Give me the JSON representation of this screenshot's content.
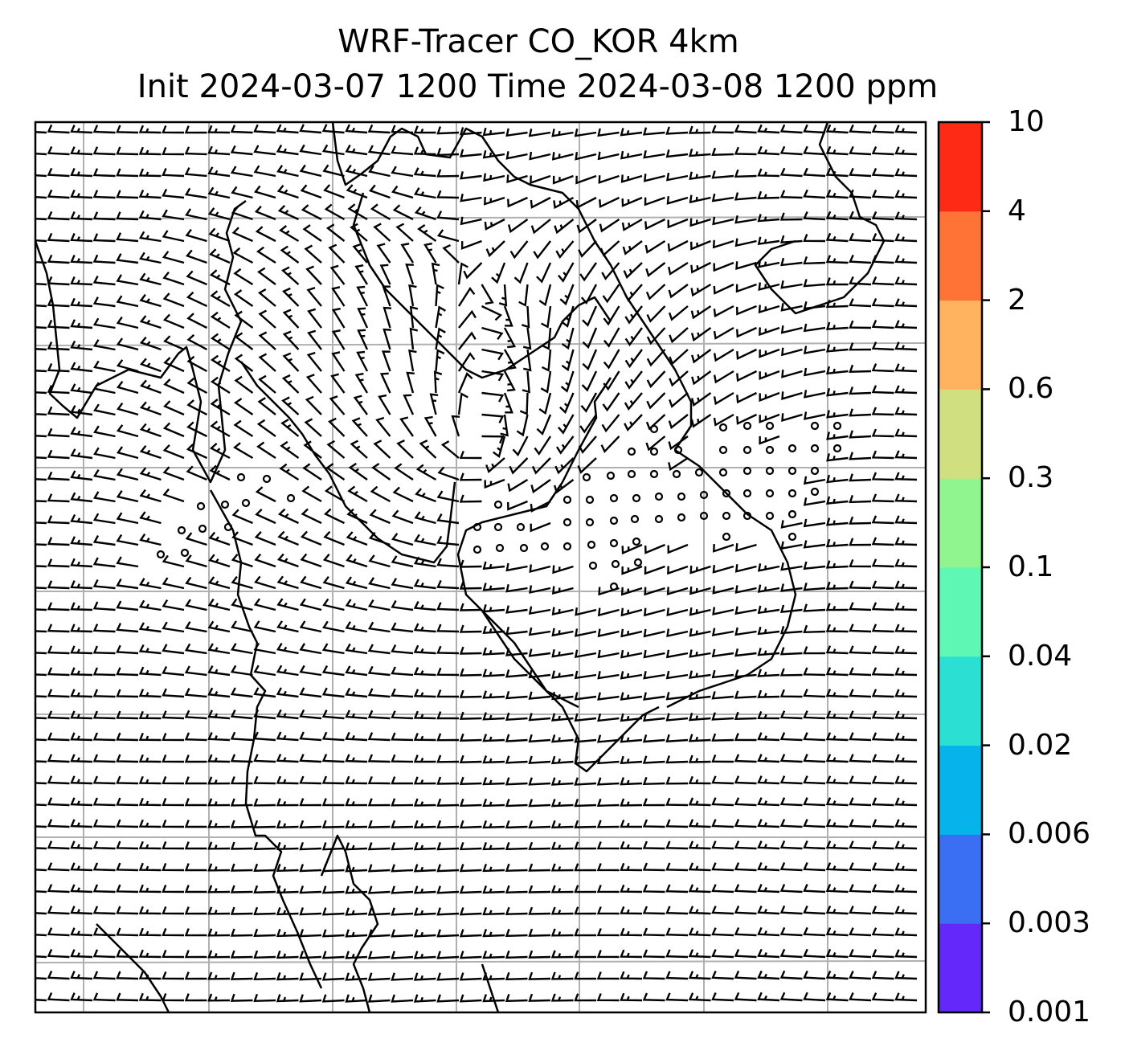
{
  "title": {
    "line1": "WRF-Tracer CO_KOR 4km",
    "line2": "Init 2024-03-07 1200 Time 2024-03-08 1200 ppm"
  },
  "colorbar": {
    "levels": [
      "0.001",
      "0.003",
      "0.006",
      "0.02",
      "0.04",
      "0.1",
      "0.3",
      "0.6",
      "2",
      "4",
      "10"
    ],
    "colors": [
      "#6528fa",
      "#3a6ff4",
      "#06b3ea",
      "#2cdfd3",
      "#5ef7b3",
      "#90f58f",
      "#d0df7f",
      "#ffb35e",
      "#ff7436",
      "#ff2a16"
    ]
  },
  "map": {
    "grid": "on",
    "grid_color": "#b0b0b0",
    "barb_color": "#000000",
    "coastline_color": "#000000",
    "calm_marker": "circle"
  }
}
